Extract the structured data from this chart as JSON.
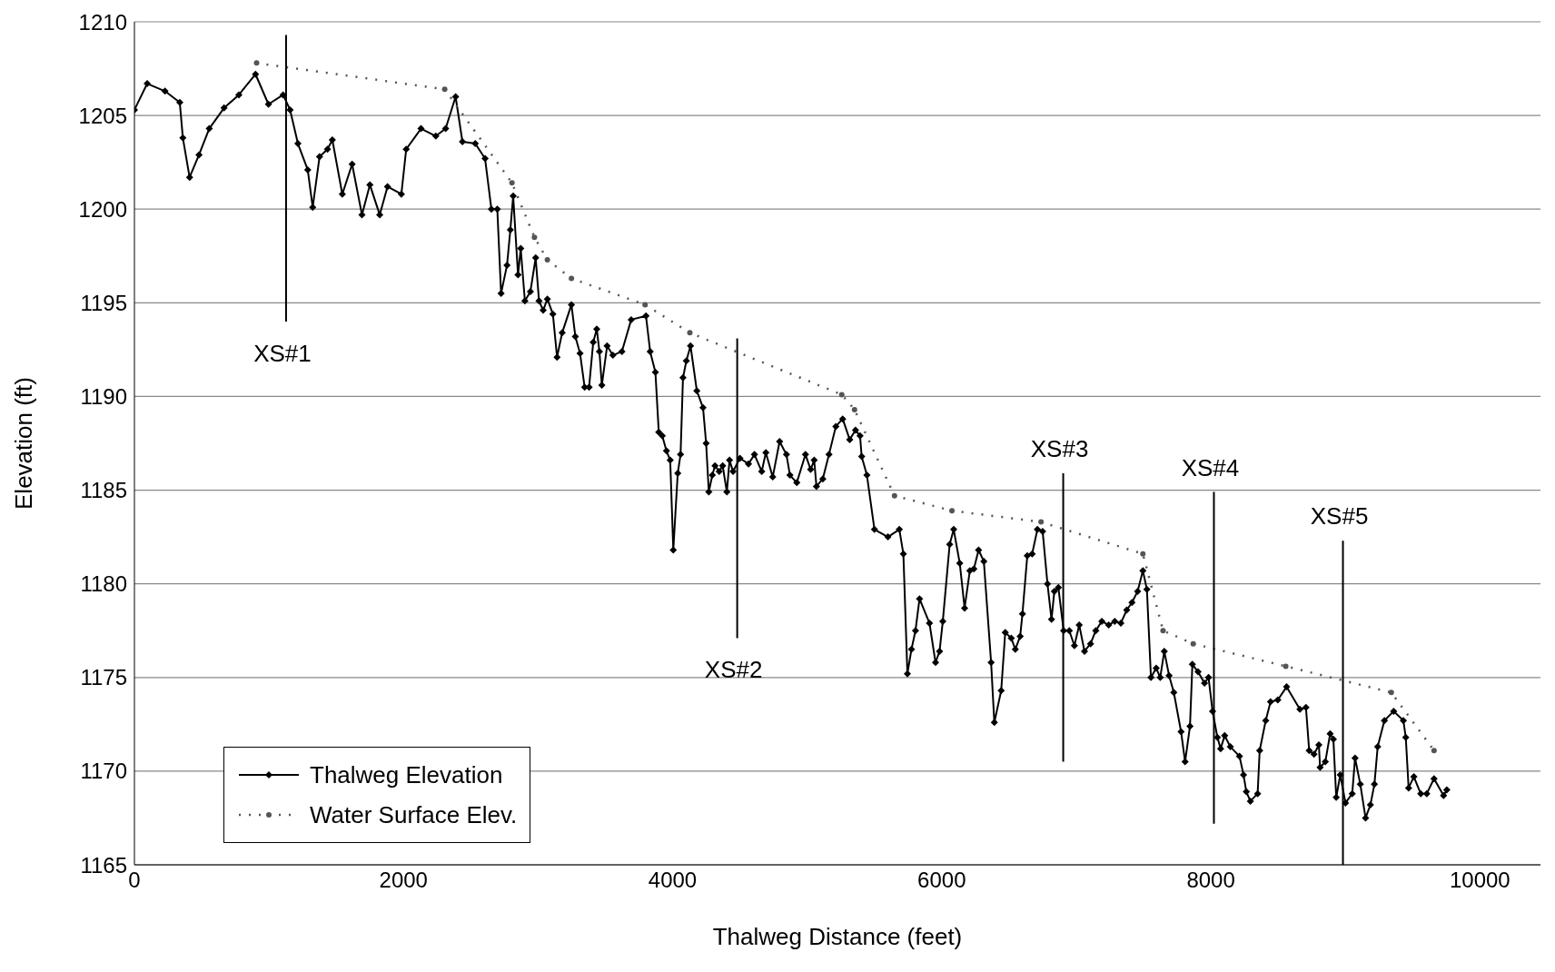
{
  "chart_data": {
    "type": "line",
    "xlabel": "Thalweg Distance (feet)",
    "ylabel": "Elevation (ft)",
    "xlim": [
      0,
      10450
    ],
    "xticks": [
      0,
      2000,
      4000,
      6000,
      8000,
      10000
    ],
    "ylim": [
      1165,
      1210
    ],
    "yticks": [
      1165,
      1170,
      1175,
      1180,
      1185,
      1190,
      1195,
      1200,
      1205,
      1210
    ],
    "grid": "y",
    "legend": "bottom left",
    "series": [
      {
        "name": "Thalweg Elevation",
        "color": "#000000",
        "marker": "diamond",
        "line_style": "solid",
        "x": [
          0,
          95,
          227,
          337,
          360,
          410,
          480,
          556,
          666,
          776,
          900,
          996,
          1105,
          1157,
          1215,
          1288,
          1325,
          1376,
          1435,
          1471,
          1545,
          1618,
          1691,
          1750,
          1823,
          1881,
          1984,
          2020,
          2130,
          2240,
          2313,
          2387,
          2438,
          2533,
          2606,
          2653,
          2697,
          2725,
          2769,
          2794,
          2815,
          2851,
          2871,
          2902,
          2943,
          2982,
          3007,
          3038,
          3069,
          3110,
          3141,
          3179,
          3248,
          3277,
          3312,
          3346,
          3379,
          3410,
          3436,
          3456,
          3474,
          3513,
          3556,
          3623,
          3692,
          3802,
          3833,
          3872,
          3897,
          3923,
          3954,
          3982,
          4005,
          4038,
          4059,
          4077,
          4102,
          4133,
          4180,
          4226,
          4249,
          4269,
          4295,
          4315,
          4346,
          4372,
          4403,
          4423,
          4449,
          4500,
          4564,
          4608,
          4662,
          4693,
          4744,
          4795,
          4846,
          4872,
          4923,
          4987,
          5026,
          5052,
          5069,
          5116,
          5162,
          5213,
          5264,
          5316,
          5359,
          5393,
          5405,
          5444,
          5500,
          5600,
          5685,
          5715,
          5745,
          5775,
          5805,
          5835,
          5909,
          5954,
          5984,
          6008,
          6059,
          6089,
          6134,
          6170,
          6209,
          6239,
          6274,
          6313,
          6367,
          6391,
          6442,
          6472,
          6517,
          6547,
          6583,
          6600,
          6636,
          6672,
          6711,
          6750,
          6786,
          6816,
          6837,
          6867,
          6906,
          6948,
          6986,
          7022,
          7061,
          7106,
          7145,
          7190,
          7241,
          7286,
          7331,
          7375,
          7414,
          7456,
          7495,
          7525,
          7555,
          7594,
          7624,
          7654,
          7690,
          7725,
          7779,
          7809,
          7845,
          7863,
          7905,
          7953,
          7983,
          8013,
          8049,
          8073,
          8103,
          8145,
          8213,
          8243,
          8264,
          8294,
          8348,
          8363,
          8408,
          8444,
          8498,
          8563,
          8662,
          8707,
          8731,
          8767,
          8803,
          8812,
          8851,
          8887,
          8911,
          8932,
          8962,
          9001,
          9051,
          9072,
          9111,
          9150,
          9186,
          9216,
          9240,
          9290,
          9359,
          9431,
          9449,
          9470,
          9509,
          9560,
          9605,
          9659,
          9730,
          9754
        ],
        "values": [
          1205.3,
          1206.7,
          1206.3,
          1205.7,
          1203.8,
          1201.7,
          1202.9,
          1204.3,
          1205.4,
          1206.1,
          1207.2,
          1205.6,
          1206.1,
          1205.3,
          1203.5,
          1202.1,
          1200.1,
          1202.8,
          1203.2,
          1203.7,
          1200.8,
          1202.4,
          1199.7,
          1201.3,
          1199.7,
          1201.2,
          1200.8,
          1203.2,
          1204.3,
          1203.9,
          1204.3,
          1206.0,
          1203.6,
          1203.5,
          1202.7,
          1200.0,
          1200.0,
          1195.5,
          1197.0,
          1198.9,
          1200.7,
          1196.5,
          1197.9,
          1195.1,
          1195.6,
          1197.4,
          1195.1,
          1194.6,
          1195.2,
          1194.4,
          1192.1,
          1193.4,
          1194.9,
          1193.2,
          1192.3,
          1190.5,
          1190.5,
          1192.9,
          1193.6,
          1192.4,
          1190.6,
          1192.7,
          1192.2,
          1192.4,
          1194.1,
          1194.3,
          1192.4,
          1191.3,
          1188.1,
          1187.9,
          1187.1,
          1186.6,
          1181.8,
          1185.9,
          1186.9,
          1191.0,
          1191.9,
          1192.7,
          1190.3,
          1189.4,
          1187.5,
          1184.9,
          1185.8,
          1186.3,
          1186.0,
          1186.3,
          1184.9,
          1186.6,
          1186.0,
          1186.7,
          1186.4,
          1186.9,
          1186.0,
          1187.0,
          1185.7,
          1187.6,
          1186.9,
          1185.8,
          1185.4,
          1186.9,
          1186.1,
          1186.6,
          1185.2,
          1185.6,
          1186.9,
          1188.4,
          1188.8,
          1187.7,
          1188.2,
          1187.9,
          1186.8,
          1185.8,
          1182.9,
          1182.5,
          1182.9,
          1181.6,
          1175.2,
          1176.5,
          1177.5,
          1179.2,
          1177.9,
          1175.8,
          1176.4,
          1178.0,
          1182.1,
          1182.9,
          1181.1,
          1178.7,
          1180.7,
          1180.8,
          1181.8,
          1181.2,
          1175.8,
          1172.6,
          1174.3,
          1177.4,
          1177.1,
          1176.5,
          1177.2,
          1178.4,
          1181.5,
          1181.6,
          1182.9,
          1182.8,
          1180.0,
          1178.1,
          1179.6,
          1179.8,
          1177.5,
          1177.5,
          1176.7,
          1177.8,
          1176.4,
          1176.8,
          1177.5,
          1178.0,
          1177.8,
          1178.0,
          1177.9,
          1178.6,
          1179.0,
          1179.6,
          1180.7,
          1179.7,
          1175.0,
          1175.5,
          1175.0,
          1176.4,
          1175.1,
          1174.2,
          1172.1,
          1170.5,
          1172.4,
          1175.7,
          1175.3,
          1174.7,
          1175.0,
          1173.2,
          1171.8,
          1171.2,
          1171.9,
          1171.3,
          1170.8,
          1169.8,
          1168.9,
          1168.4,
          1168.8,
          1171.1,
          1172.7,
          1173.7,
          1173.8,
          1174.5,
          1173.3,
          1173.4,
          1171.1,
          1170.9,
          1171.4,
          1170.2,
          1170.5,
          1172.0,
          1171.7,
          1168.6,
          1169.8,
          1168.3,
          1168.8,
          1170.7,
          1169.3,
          1167.5,
          1168.2,
          1169.3,
          1171.3,
          1172.7,
          1173.2,
          1172.7,
          1171.8,
          1169.1,
          1169.7,
          1168.8,
          1168.8,
          1169.6,
          1168.7,
          1169.0
        ]
      },
      {
        "name": "Water Surface Elev.",
        "color": "#555555",
        "marker": "circle",
        "line_style": "dotted",
        "x": [
          908,
          2306,
          2806,
          2973,
          3069,
          3248,
          3795,
          4128,
          5257,
          5352,
          5649,
          6076,
          6738,
          7495,
          7645,
          7869,
          8557,
          9341,
          9659
        ],
        "values": [
          1207.8,
          1206.4,
          1201.4,
          1198.5,
          1197.3,
          1196.3,
          1194.9,
          1193.4,
          1190.1,
          1189.3,
          1184.7,
          1183.9,
          1183.3,
          1181.6,
          1177.5,
          1176.8,
          1175.6,
          1174.2,
          1171.1
        ]
      },
      {
        "name": "XS#1",
        "color": "#000000",
        "marker": "none",
        "line_style": "solid",
        "x": [
          1127,
          1127
        ],
        "values": [
          1194.0,
          1209.3
        ]
      },
      {
        "name": "XS#2",
        "color": "#000000",
        "marker": "none",
        "line_style": "solid",
        "x": [
          4480,
          4480
        ],
        "values": [
          1177.1,
          1193.1
        ]
      },
      {
        "name": "XS#3",
        "color": "#000000",
        "marker": "none",
        "line_style": "solid",
        "x": [
          6903,
          6903
        ],
        "values": [
          1185.9,
          1170.5
        ]
      },
      {
        "name": "XS#4",
        "color": "#000000",
        "marker": "none",
        "line_style": "solid",
        "x": [
          8023,
          8023
        ],
        "values": [
          1184.9,
          1167.2
        ]
      },
      {
        "name": "XS#5",
        "color": "#000000",
        "marker": "none",
        "line_style": "solid",
        "x": [
          8982,
          8982
        ],
        "values": [
          1182.3,
          1165
        ]
      }
    ]
  }
}
